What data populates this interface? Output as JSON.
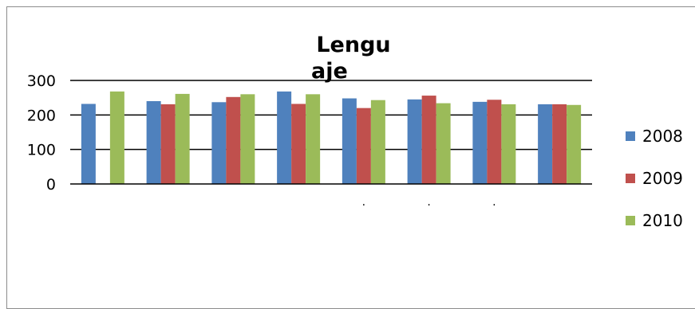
{
  "chart_data": {
    "type": "bar",
    "title_lines": [
      "Lengu",
      "aje"
    ],
    "categories": [
      "",
      "",
      "",
      "",
      ".",
      ".",
      ".",
      ""
    ],
    "series": [
      {
        "name": "2008",
        "color": "#4f81bd",
        "values": [
          232,
          240,
          237,
          268,
          248,
          245,
          238,
          231
        ]
      },
      {
        "name": "2009",
        "color": "#c0504d",
        "values": [
          null,
          231,
          252,
          232,
          220,
          256,
          244,
          231
        ]
      },
      {
        "name": "2010",
        "color": "#9bbb59",
        "values": [
          268,
          261,
          260,
          260,
          243,
          234,
          231,
          229
        ]
      }
    ],
    "yticks": [
      0,
      100,
      200,
      300
    ],
    "ylim": [
      0,
      300
    ],
    "grid": true,
    "legend_position": "right"
  }
}
